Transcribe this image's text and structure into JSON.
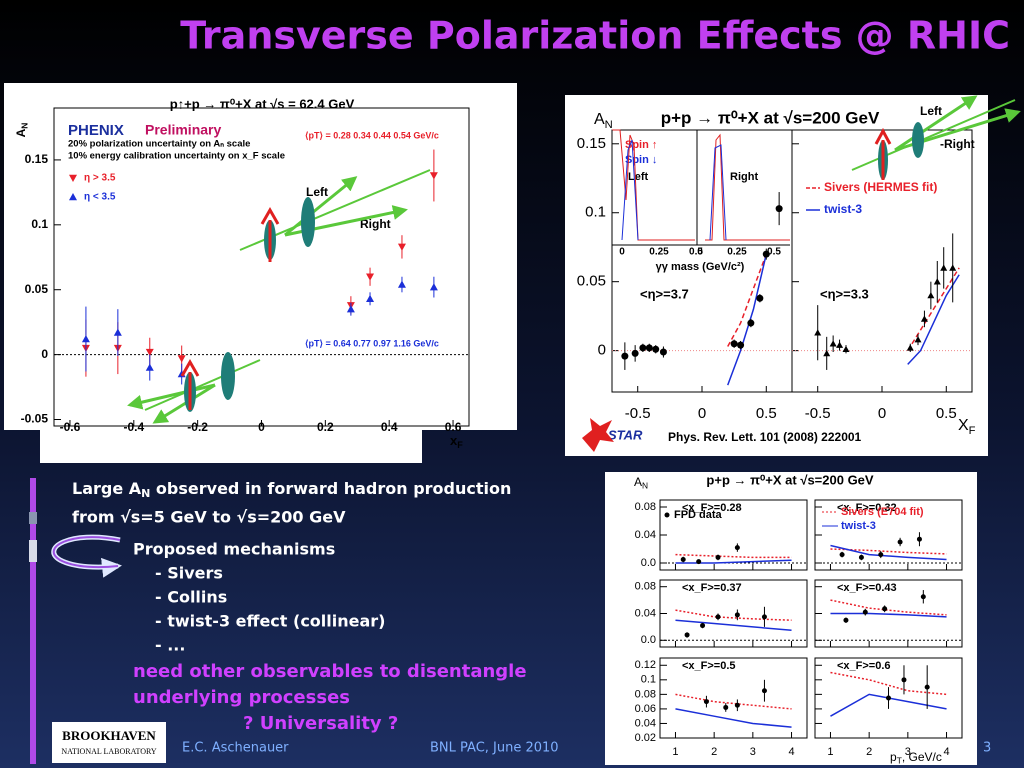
{
  "title": "Transverse Polarization Effects @ RHIC",
  "body": {
    "line1": [
      "Large A",
      "N",
      " observed in forward hadron production"
    ],
    "line2": "from √s=5 GeV to √s=200 GeV",
    "heading": "Proposed mechanisms",
    "mechanisms": [
      "- Sivers",
      "- Collins",
      "- twist-3 effect (collinear)",
      "- ..."
    ],
    "need": [
      "need other observables to disentangle",
      "underlying processes",
      "? Universality ?"
    ]
  },
  "footer": {
    "logo": [
      "BROOKHAVEN",
      "NATIONAL LABORATORY"
    ],
    "author": "E.C. Aschenauer",
    "event": "BNL PAC, June 2010",
    "page": "3"
  },
  "phenix": {
    "title": "p↑+p → π⁰+X at √s = 62.4 GeV",
    "brand": "PHENIX",
    "preliminary": "Preliminary",
    "notes": [
      "20% polarization uncertainty on Aₙ scale",
      "10% energy calibration uncertainty on x_F scale"
    ],
    "pt_high": "⟨pT⟩ = 0.28  0.34  0.44  0.54 GeV/c",
    "pt_low": "⟨pT⟩ = 0.64  0.77  0.97  1.16 GeV/c",
    "ylabel": [
      "A",
      "N"
    ],
    "xlabel": [
      "x",
      "F"
    ],
    "annotations": [
      "Left",
      "Right"
    ],
    "xlim": [
      -0.65,
      0.65
    ],
    "ylim": [
      -0.055,
      0.19
    ],
    "xticks": [
      -0.6,
      -0.4,
      -0.2,
      0,
      0.2,
      0.4,
      0.6
    ],
    "yticks": [
      -0.05,
      0,
      0.05,
      0.1,
      0.15
    ],
    "series": [
      {
        "name": "η > 3.5",
        "color": "#e8202a",
        "marker": "down",
        "x": [
          -0.55,
          -0.45,
          -0.35,
          -0.25,
          0.28,
          0.34,
          0.44,
          0.54
        ],
        "values": [
          0.005,
          0.005,
          0.002,
          -0.003,
          0.038,
          0.06,
          0.083,
          0.138
        ],
        "errors": [
          0.022,
          0.02,
          0.011,
          0.01,
          0.007,
          0.007,
          0.009,
          0.02
        ]
      },
      {
        "name": "η < 3.5",
        "color": "#1b2fd8",
        "marker": "up",
        "x": [
          -0.55,
          -0.45,
          -0.35,
          -0.25,
          0.28,
          0.34,
          0.44,
          0.54
        ],
        "values": [
          0.012,
          0.017,
          -0.01,
          -0.015,
          0.035,
          0.043,
          0.054,
          0.052
        ],
        "errors": [
          0.025,
          0.018,
          0.01,
          0.008,
          0.005,
          0.005,
          0.006,
          0.008
        ]
      }
    ]
  },
  "star": {
    "title": "p+p → π⁰+X at √s=200 GeV",
    "ylabel": [
      "A",
      "N"
    ],
    "xlabel": [
      "X",
      "F"
    ],
    "annotations": [
      "Left",
      "-Right"
    ],
    "xlim": [
      -0.7,
      0.7
    ],
    "ylim": [
      -0.03,
      0.16
    ],
    "xticks": [
      -0.5,
      0,
      0.5
    ],
    "yticks": [
      0,
      0.05,
      0.1,
      0.15
    ],
    "legend": [
      {
        "name": "Sivers (HERMES fit)",
        "color": "#e8202a"
      },
      {
        "name": "twist-3",
        "color": "#1b2fd8"
      }
    ],
    "inset": {
      "labels": [
        "Spin ↑",
        "Spin ↓",
        "Left",
        "Right"
      ],
      "ticks": [
        0,
        0.25,
        0.5
      ],
      "xlabel": "γγ mass (GeV/c²)"
    },
    "citation": "Phys. Rev. Lett. 101 (2008) 222001",
    "logo": "STAR",
    "panels": [
      {
        "label": "<η>=3.7",
        "marker": "circle",
        "x": [
          -0.6,
          -0.52,
          -0.46,
          -0.41,
          -0.36,
          -0.3,
          0.25,
          0.3,
          0.38,
          0.45,
          0.5,
          0.6
        ],
        "values": [
          -0.004,
          -0.002,
          0.002,
          0.002,
          0.001,
          -0.001,
          0.005,
          0.004,
          0.02,
          0.038,
          0.07,
          0.103
        ],
        "errors": [
          0.01,
          0.006,
          0.003,
          0.003,
          0.003,
          0.004,
          0.003,
          0.003,
          0.003,
          0.003,
          0.004,
          0.012
        ],
        "curve_x": [
          0.2,
          0.3,
          0.4,
          0.5
        ],
        "sivers": [
          0.003,
          0.02,
          0.045,
          0.07
        ],
        "twist": [
          -0.025,
          0.0,
          0.03,
          0.07
        ]
      },
      {
        "label": "<η>=3.3",
        "marker": "up",
        "x": [
          -0.5,
          -0.43,
          -0.38,
          -0.33,
          -0.28,
          0.22,
          0.28,
          0.33,
          0.38,
          0.43,
          0.48,
          0.55
        ],
        "values": [
          0.013,
          -0.002,
          0.005,
          0.004,
          0.001,
          0.002,
          0.008,
          0.023,
          0.04,
          0.05,
          0.06,
          0.06
        ],
        "errors": [
          0.02,
          0.012,
          0.006,
          0.004,
          0.003,
          0.003,
          0.004,
          0.006,
          0.01,
          0.015,
          0.015,
          0.025
        ],
        "curve_x": [
          0.2,
          0.3,
          0.4,
          0.5,
          0.6
        ],
        "sivers": [
          0.0,
          0.015,
          0.03,
          0.045,
          0.06
        ],
        "twist": [
          -0.01,
          0.0,
          0.02,
          0.04,
          0.055
        ]
      }
    ]
  },
  "fpd": {
    "title": "p+p → π⁰+X at √s=200 GeV",
    "ylabel": [
      "A",
      "N"
    ],
    "xlabel": [
      "p",
      "T",
      ", GeV/c"
    ],
    "legend": [
      {
        "name": "FPD data",
        "color": "#000000"
      },
      {
        "name": "Sivers (E704 fit)",
        "color": "#e8202a"
      },
      {
        "name": "twist-3",
        "color": "#1b2fd8"
      }
    ],
    "xlim": [
      0.6,
      4.4
    ],
    "xticks": [
      1,
      2,
      3,
      4
    ],
    "curve_x": [
      1,
      2,
      3,
      4
    ],
    "rows": [
      {
        "ylim": [
          -0.01,
          0.09
        ],
        "yticks": [
          {
            "value": 0,
            "label": "0.0"
          },
          0.04,
          0.08
        ]
      },
      {
        "ylim": [
          -0.01,
          0.09
        ],
        "yticks": [
          {
            "value": 0,
            "label": "0.0"
          },
          0.04,
          0.08
        ]
      },
      {
        "ylim": [
          0.02,
          0.13
        ],
        "yticks": [
          0.02,
          0.04,
          0.06,
          0.08,
          0.1,
          0.12
        ]
      }
    ],
    "panels": [
      {
        "label": "<x_F>=0.28",
        "x": [
          1.2,
          1.6,
          2.1,
          2.6
        ],
        "values": [
          0.005,
          0.002,
          0.008,
          0.022
        ],
        "errors": [
          0.004,
          0.003,
          0.004,
          0.006
        ],
        "sivers": [
          0.012,
          0.01,
          0.008,
          0.008
        ],
        "twist": [
          0.0,
          0.0,
          0.002,
          0.004
        ]
      },
      {
        "label": "<x_F>=0.32",
        "x": [
          1.3,
          1.8,
          2.3,
          2.8,
          3.3
        ],
        "values": [
          0.012,
          0.008,
          0.012,
          0.03,
          0.034
        ],
        "errors": [
          0.004,
          0.004,
          0.005,
          0.006,
          0.01
        ],
        "sivers": [
          0.02,
          0.018,
          0.015,
          0.013
        ],
        "twist": [
          0.025,
          0.012,
          0.008,
          0.005
        ]
      },
      {
        "label": "<x_F>=0.37",
        "x": [
          1.3,
          1.7,
          2.1,
          2.6,
          3.3
        ],
        "values": [
          0.008,
          0.022,
          0.035,
          0.038,
          0.035
        ],
        "errors": [
          0.004,
          0.004,
          0.005,
          0.008,
          0.015
        ],
        "sivers": [
          0.045,
          0.035,
          0.032,
          0.03
        ],
        "twist": [
          0.03,
          0.025,
          0.02,
          0.015
        ]
      },
      {
        "label": "<x_F>=0.43",
        "x": [
          1.4,
          1.9,
          2.4,
          3.4
        ],
        "values": [
          0.03,
          0.042,
          0.047,
          0.065
        ],
        "errors": [
          0.004,
          0.005,
          0.005,
          0.01
        ],
        "sivers": [
          0.06,
          0.048,
          0.042,
          0.038
        ],
        "twist": [
          0.04,
          0.04,
          0.038,
          0.035
        ]
      },
      {
        "label": "<x_F>=0.5",
        "x": [
          1.8,
          2.3,
          2.6,
          3.3
        ],
        "values": [
          0.07,
          0.062,
          0.065,
          0.085
        ],
        "errors": [
          0.008,
          0.006,
          0.008,
          0.015
        ],
        "sivers": [
          0.08,
          0.07,
          0.065,
          0.06
        ],
        "twist": [
          0.06,
          0.05,
          0.04,
          0.035
        ]
      },
      {
        "label": "<x_F>=0.6",
        "x": [
          2.5,
          2.9,
          3.5
        ],
        "values": [
          0.075,
          0.1,
          0.09
        ],
        "errors": [
          0.015,
          0.02,
          0.03
        ],
        "sivers": [
          0.11,
          0.1,
          0.085,
          0.08
        ],
        "twist": [
          0.05,
          0.08,
          0.07,
          0.06
        ]
      }
    ]
  }
}
